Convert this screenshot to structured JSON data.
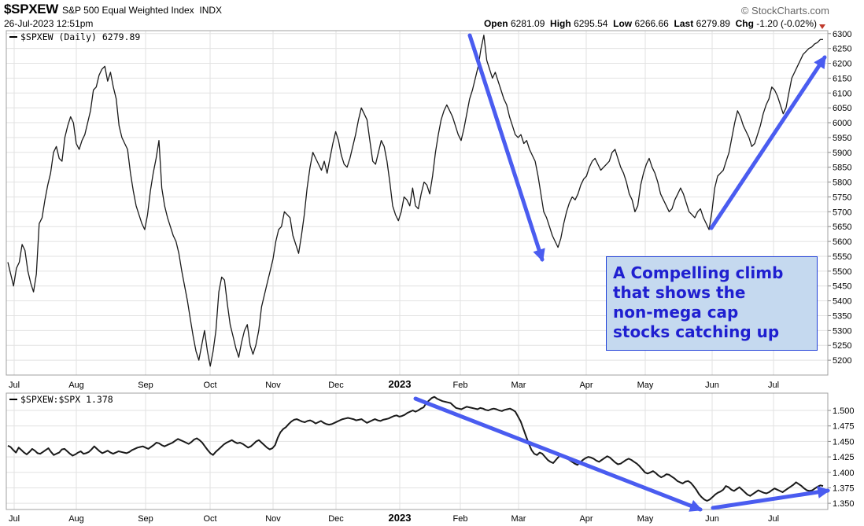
{
  "header": {
    "symbol": "$SPXEW",
    "name": "S&P 500 Equal Weighted Index",
    "exchange": "INDX",
    "datetime": "26-Jul-2023 12:51pm",
    "brand": "© StockCharts.com",
    "open_label": "Open",
    "open": "6281.09",
    "high_label": "High",
    "high": "6295.54",
    "low_label": "Low",
    "low": "6266.66",
    "last_label": "Last",
    "last": "6279.89",
    "chg_label": "Chg",
    "chg": "-1.20 (-0.02%)"
  },
  "annotation": {
    "lines": [
      "A Compelling climb",
      "that shows the",
      "non-mega cap",
      "stocks catching up"
    ]
  },
  "colors": {
    "line": "#1a1a1a",
    "arrow": "#4a5cf0",
    "grid": "#e2e2e2",
    "marker": "#c0392b"
  },
  "chart_data": [
    {
      "type": "line",
      "legend": "$SPXEW (Daily) 6279.89",
      "x_ticks": [
        "Jul",
        "Aug",
        "Sep",
        "Oct",
        "Nov",
        "Dec",
        "2023",
        "Feb",
        "Mar",
        "Apr",
        "May",
        "Jun",
        "Jul"
      ],
      "ylim": [
        5150,
        6310
      ],
      "y_ticks": [
        5200,
        5250,
        5300,
        5350,
        5400,
        5450,
        5500,
        5550,
        5600,
        5650,
        5700,
        5750,
        5800,
        5850,
        5900,
        5950,
        6000,
        6050,
        6100,
        6150,
        6200,
        6250,
        6300
      ],
      "grid": true,
      "series": [
        {
          "values": [
            5530,
            5490,
            5450,
            5510,
            5530,
            5590,
            5570,
            5500,
            5460,
            5430,
            5490,
            5660,
            5680,
            5740,
            5790,
            5830,
            5900,
            5920,
            5880,
            5870,
            5950,
            5990,
            6020,
            6000,
            5930,
            5910,
            5940,
            5960,
            6000,
            6040,
            6110,
            6120,
            6160,
            6180,
            6190,
            6140,
            6170,
            6120,
            6080,
            5990,
            5950,
            5930,
            5910,
            5830,
            5770,
            5720,
            5690,
            5660,
            5640,
            5690,
            5770,
            5830,
            5880,
            5940,
            5780,
            5720,
            5680,
            5650,
            5620,
            5600,
            5560,
            5500,
            5450,
            5400,
            5340,
            5280,
            5230,
            5200,
            5250,
            5300,
            5230,
            5180,
            5230,
            5300,
            5430,
            5480,
            5470,
            5390,
            5320,
            5280,
            5240,
            5210,
            5260,
            5300,
            5320,
            5250,
            5220,
            5250,
            5300,
            5380,
            5420,
            5460,
            5500,
            5540,
            5600,
            5640,
            5650,
            5700,
            5690,
            5680,
            5620,
            5590,
            5560,
            5620,
            5690,
            5780,
            5850,
            5900,
            5880,
            5860,
            5840,
            5870,
            5830,
            5880,
            5930,
            5970,
            5940,
            5890,
            5860,
            5850,
            5880,
            5920,
            5960,
            6010,
            6050,
            6030,
            6010,
            5940,
            5870,
            5860,
            5900,
            5940,
            5920,
            5870,
            5800,
            5720,
            5690,
            5670,
            5700,
            5750,
            5740,
            5720,
            5780,
            5720,
            5710,
            5760,
            5800,
            5790,
            5760,
            5820,
            5900,
            5960,
            6010,
            6040,
            6060,
            6040,
            6020,
            5990,
            5960,
            5940,
            5980,
            6030,
            6080,
            6110,
            6150,
            6190,
            6250,
            6295,
            6210,
            6180,
            6150,
            6170,
            6140,
            6110,
            6080,
            6060,
            6020,
            5990,
            5960,
            5950,
            5960,
            5930,
            5940,
            5910,
            5890,
            5870,
            5820,
            5760,
            5700,
            5680,
            5650,
            5620,
            5600,
            5580,
            5610,
            5660,
            5700,
            5730,
            5750,
            5740,
            5760,
            5790,
            5810,
            5820,
            5850,
            5870,
            5880,
            5860,
            5840,
            5850,
            5860,
            5870,
            5900,
            5910,
            5880,
            5850,
            5830,
            5800,
            5760,
            5740,
            5700,
            5720,
            5790,
            5830,
            5860,
            5880,
            5850,
            5830,
            5800,
            5760,
            5740,
            5720,
            5700,
            5710,
            5740,
            5760,
            5780,
            5760,
            5730,
            5700,
            5690,
            5680,
            5700,
            5710,
            5680,
            5660,
            5640,
            5700,
            5780,
            5820,
            5830,
            5840,
            5870,
            5900,
            5950,
            6000,
            6040,
            6020,
            5990,
            5970,
            5950,
            5920,
            5930,
            5960,
            5990,
            6030,
            6060,
            6080,
            6120,
            6110,
            6090,
            6060,
            6030,
            6050,
            6100,
            6150,
            6170,
            6190,
            6210,
            6230,
            6240,
            6250,
            6255,
            6265,
            6270,
            6280,
            6280
          ]
        }
      ]
    },
    {
      "type": "line",
      "legend": "$SPXEW:$SPX 1.378",
      "x_ticks": [
        "Jul",
        "Aug",
        "Sep",
        "Oct",
        "Nov",
        "Dec",
        "2023",
        "Feb",
        "Mar",
        "Apr",
        "May",
        "Jun",
        "Jul"
      ],
      "ylim": [
        1.34,
        1.528
      ],
      "y_ticks": [
        1.35,
        1.375,
        1.4,
        1.425,
        1.45,
        1.475,
        1.5
      ],
      "grid": true,
      "series": [
        {
          "values": [
            1.443,
            1.441,
            1.436,
            1.432,
            1.44,
            1.436,
            1.432,
            1.429,
            1.433,
            1.438,
            1.435,
            1.431,
            1.43,
            1.433,
            1.436,
            1.439,
            1.433,
            1.428,
            1.43,
            1.432,
            1.437,
            1.438,
            1.434,
            1.43,
            1.427,
            1.429,
            1.432,
            1.434,
            1.43,
            1.431,
            1.433,
            1.437,
            1.442,
            1.438,
            1.434,
            1.431,
            1.433,
            1.435,
            1.432,
            1.43,
            1.432,
            1.434,
            1.433,
            1.432,
            1.431,
            1.433,
            1.436,
            1.438,
            1.44,
            1.441,
            1.442,
            1.44,
            1.438,
            1.441,
            1.444,
            1.448,
            1.447,
            1.444,
            1.442,
            1.444,
            1.446,
            1.448,
            1.451,
            1.454,
            1.452,
            1.45,
            1.448,
            1.446,
            1.449,
            1.453,
            1.455,
            1.452,
            1.448,
            1.442,
            1.436,
            1.431,
            1.428,
            1.433,
            1.437,
            1.441,
            1.445,
            1.448,
            1.45,
            1.452,
            1.449,
            1.447,
            1.448,
            1.446,
            1.443,
            1.44,
            1.442,
            1.446,
            1.45,
            1.452,
            1.448,
            1.444,
            1.44,
            1.437,
            1.439,
            1.444,
            1.456,
            1.465,
            1.47,
            1.473,
            1.478,
            1.482,
            1.485,
            1.486,
            1.484,
            1.482,
            1.481,
            1.483,
            1.484,
            1.482,
            1.479,
            1.481,
            1.483,
            1.48,
            1.478,
            1.477,
            1.478,
            1.48,
            1.482,
            1.484,
            1.486,
            1.487,
            1.488,
            1.487,
            1.486,
            1.484,
            1.485,
            1.486,
            1.483,
            1.48,
            1.482,
            1.484,
            1.486,
            1.484,
            1.483,
            1.485,
            1.486,
            1.487,
            1.489,
            1.491,
            1.492,
            1.49,
            1.491,
            1.493,
            1.496,
            1.498,
            1.5,
            1.498,
            1.5,
            1.503,
            1.505,
            1.512,
            1.516,
            1.52,
            1.522,
            1.519,
            1.517,
            1.515,
            1.514,
            1.513,
            1.512,
            1.508,
            1.504,
            1.503,
            1.502,
            1.504,
            1.506,
            1.505,
            1.504,
            1.503,
            1.502,
            1.504,
            1.503,
            1.501,
            1.5,
            1.502,
            1.503,
            1.502,
            1.5,
            1.499,
            1.501,
            1.502,
            1.503,
            1.501,
            1.498,
            1.49,
            1.482,
            1.47,
            1.458,
            1.446,
            1.436,
            1.43,
            1.428,
            1.432,
            1.43,
            1.425,
            1.42,
            1.417,
            1.415,
            1.42,
            1.425,
            1.429,
            1.427,
            1.423,
            1.42,
            1.417,
            1.414,
            1.412,
            1.416,
            1.42,
            1.423,
            1.425,
            1.424,
            1.422,
            1.419,
            1.417,
            1.42,
            1.423,
            1.426,
            1.424,
            1.42,
            1.416,
            1.413,
            1.414,
            1.417,
            1.42,
            1.422,
            1.42,
            1.417,
            1.414,
            1.41,
            1.405,
            1.4,
            1.398,
            1.4,
            1.402,
            1.399,
            1.395,
            1.392,
            1.394,
            1.397,
            1.396,
            1.393,
            1.39,
            1.386,
            1.384,
            1.382,
            1.385,
            1.386,
            1.383,
            1.378,
            1.372,
            1.365,
            1.36,
            1.356,
            1.354,
            1.356,
            1.36,
            1.364,
            1.367,
            1.369,
            1.372,
            1.378,
            1.376,
            1.372,
            1.37,
            1.373,
            1.376,
            1.372,
            1.368,
            1.364,
            1.362,
            1.365,
            1.368,
            1.371,
            1.369,
            1.367,
            1.366,
            1.368,
            1.371,
            1.374,
            1.372,
            1.37,
            1.368,
            1.371,
            1.374,
            1.377,
            1.38,
            1.384,
            1.381,
            1.378,
            1.374,
            1.371,
            1.37,
            1.371,
            1.374,
            1.377,
            1.379,
            1.378
          ]
        }
      ]
    }
  ]
}
